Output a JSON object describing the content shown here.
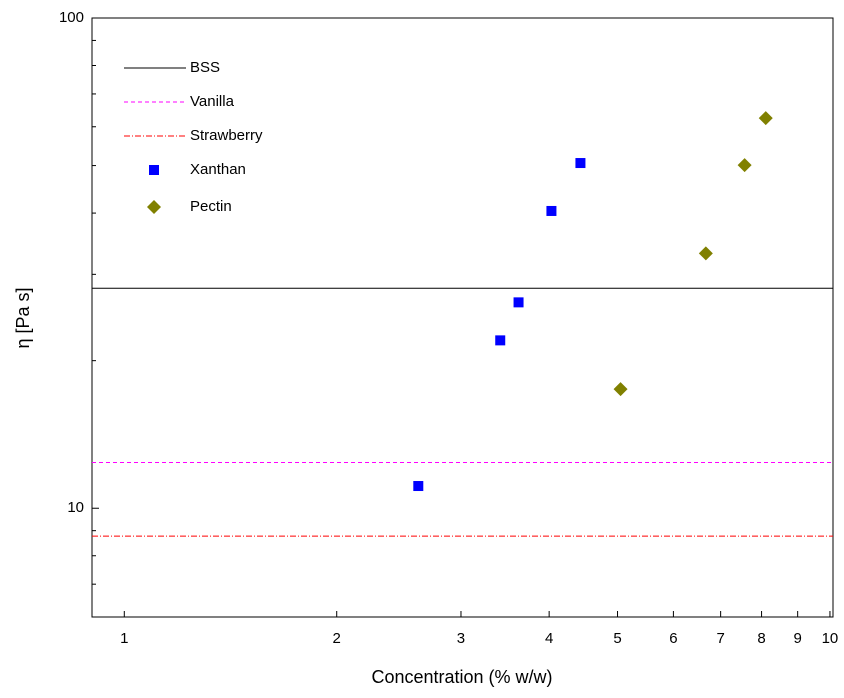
{
  "chart_data": {
    "type": "scatter",
    "x_label": "Concentration (% w/w)",
    "y_label": "η [Pa s]",
    "xscale": "log",
    "yscale": "log",
    "xlim": [
      0.9,
      10.1
    ],
    "ylim": [
      6,
      100
    ],
    "xticks": [
      1,
      2,
      3,
      4,
      5,
      6,
      7,
      8,
      9,
      10
    ],
    "yticks": [
      10,
      100
    ],
    "yminorticks": [
      7,
      8,
      9,
      20,
      30,
      40,
      50,
      60,
      70,
      80,
      90
    ],
    "legend": "upper-left",
    "reference_lines": [
      {
        "name": "BSS",
        "color": "#000000",
        "dash": "solid",
        "value": 28.1
      },
      {
        "name": "Vanilla",
        "color": "#ff00ff",
        "dash": "dash",
        "value": 12.4
      },
      {
        "name": "Strawberry",
        "color": "#ff0000",
        "dash": "dashdot",
        "value": 8.77
      }
    ],
    "series": [
      {
        "name": "Xanthan",
        "color": "#0000ff",
        "marker": "square",
        "x": [
          2.61,
          3.41,
          3.62,
          4.03,
          4.43
        ],
        "values": [
          11.1,
          22.0,
          26.3,
          40.4,
          50.6
        ]
      },
      {
        "name": "Pectin",
        "color": "#808000",
        "marker": "diamond",
        "x": [
          5.05,
          6.67,
          7.57,
          8.11
        ],
        "values": [
          17.5,
          33.1,
          50.1,
          62.5
        ]
      }
    ]
  }
}
